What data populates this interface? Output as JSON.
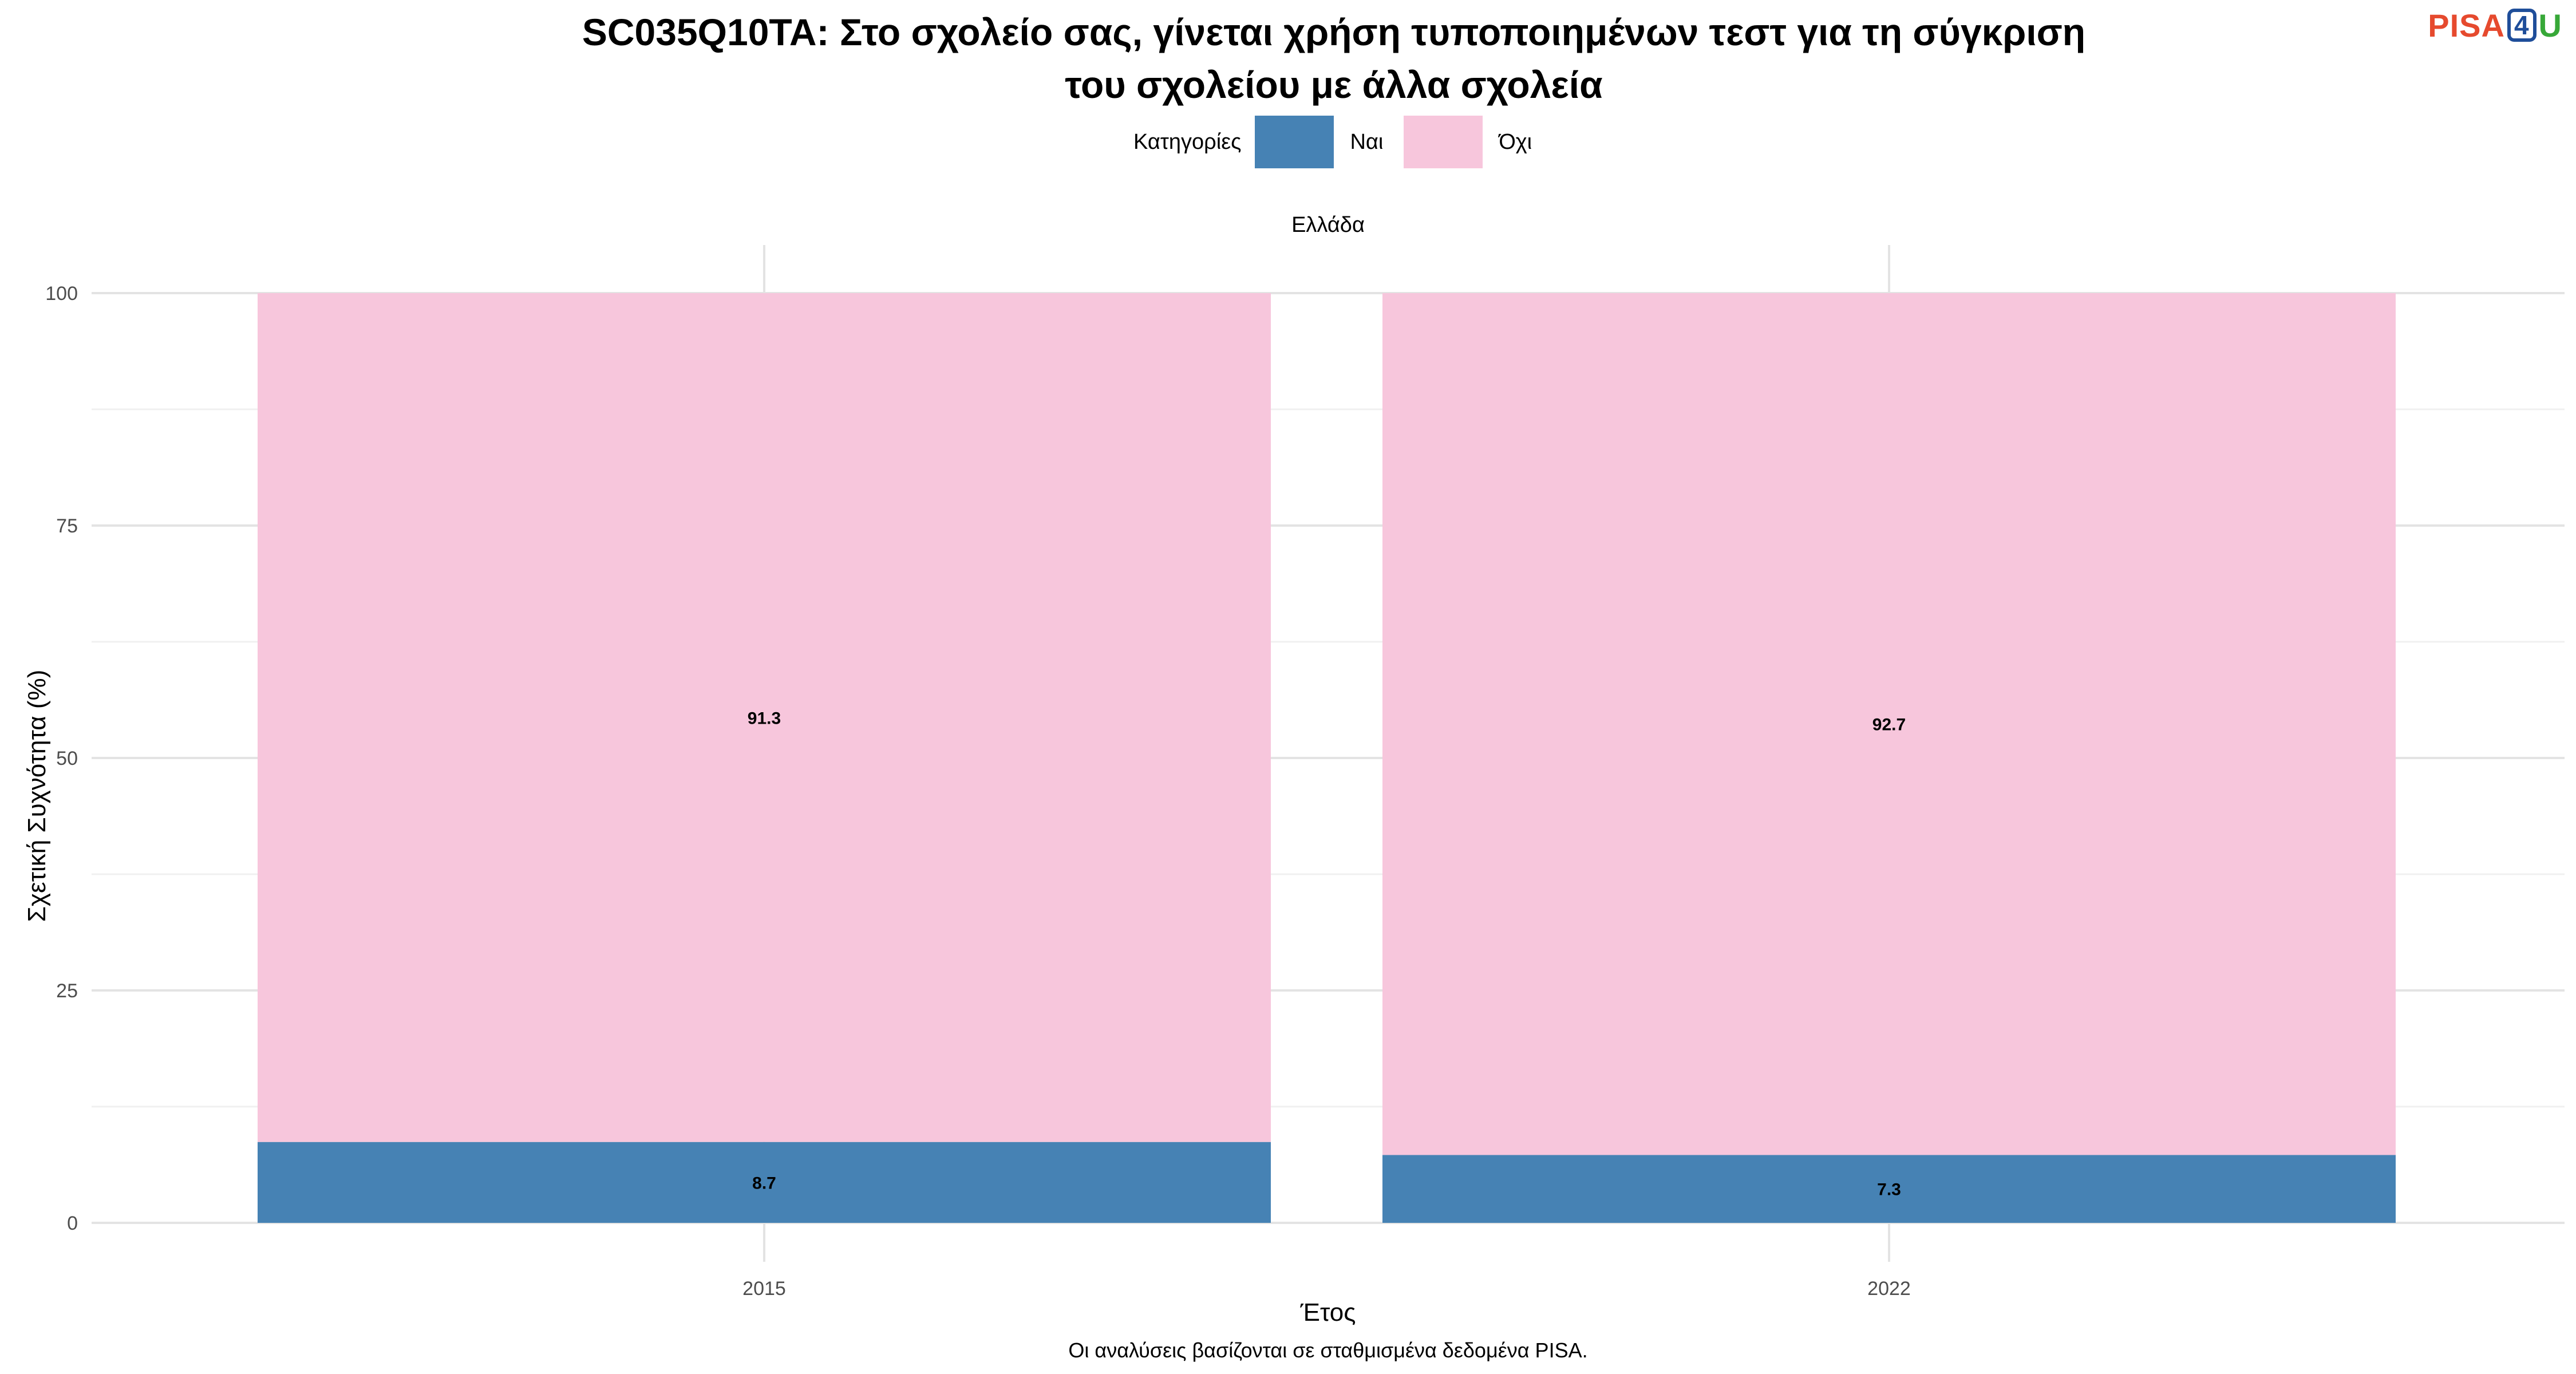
{
  "header": {
    "title_line1": "SC035Q10TA: Στο σχολείο σας, γίνεται χρήση τυποποιημένων τεστ για τη σύγκριση",
    "title_line2": "του σχολείου με άλλα σχολεία",
    "logo": {
      "pisa": "PISA",
      "four": "4",
      "u": "U"
    }
  },
  "legend": {
    "title": "Κατηγορίες",
    "items": [
      {
        "label": "Ναι",
        "color": "#4682b4"
      },
      {
        "label": "Όχι",
        "color": "#f7c6dc"
      }
    ]
  },
  "facet": {
    "label": "Ελλάδα"
  },
  "axes": {
    "ylabel": "Σχετική Συχνότητα (%)",
    "xlabel": "Έτος"
  },
  "caption": "Οι αναλύσεις βασίζονται σε σταθμισμένα δεδομένα PISA.",
  "chart_data": {
    "type": "bar",
    "stacked": true,
    "title": "SC035Q10TA: Στο σχολείο σας, γίνεται χρήση τυποποιημένων τεστ για τη σύγκριση του σχολείου με άλλα σχολεία",
    "xlabel": "Έτος",
    "ylabel": "Σχετική Συχνότητα (%)",
    "categories": [
      "2015",
      "2022"
    ],
    "series": [
      {
        "name": "Ναι",
        "values": [
          8.7,
          7.3
        ],
        "color": "#4682b4"
      },
      {
        "name": "Όχι",
        "values": [
          91.3,
          92.7
        ],
        "color": "#f7c6dc"
      }
    ],
    "ylim": [
      0,
      100
    ],
    "yticks": [
      0,
      25,
      50,
      75,
      100
    ],
    "grid": true,
    "legend_position": "top"
  }
}
